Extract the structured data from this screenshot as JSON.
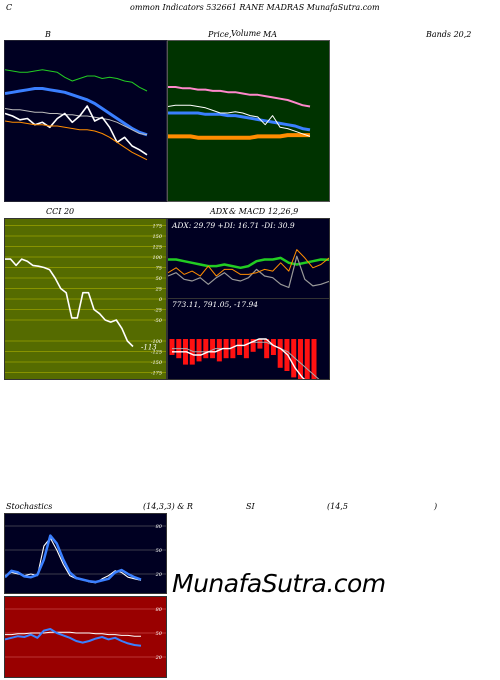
{
  "header": {
    "left_char": "C",
    "title": "ommon  Indicators 532661 RANE MADRAS MunafaSutra.com"
  },
  "panel_labels": {
    "bollinger_b": "B",
    "price_volume": "Price,",
    "volume_overlap": "Volume",
    "ma": "MA",
    "bands": "Bands 20,2",
    "cci": "CCI 20",
    "adx_title_a": "ADX",
    "adx_title_b": "& MACD 12,26,9",
    "stoch_a": "Stochastics",
    "stoch_b": "(14,3,3) & R",
    "stoch_c": "SI",
    "stoch_d": "(14,5",
    "stoch_e": ")"
  },
  "watermark": "MunafaSutra.com",
  "colors": {
    "dark_bg": "#000022",
    "green_bg": "#003300",
    "olive_bg": "#556b00",
    "red_bg": "#990000",
    "blue_line": "#3a7fff",
    "white_line": "#ffffff",
    "orange_line": "#ff8c00",
    "green_line": "#22cc22"
  },
  "chart_data": [
    {
      "type": "line",
      "name": "bollinger-b",
      "series": [
        {
          "values": [
            78,
            79,
            80,
            81,
            82,
            82,
            81,
            80,
            79,
            77,
            75,
            73,
            70,
            66,
            62,
            58,
            54,
            50,
            47,
            45
          ]
        },
        {
          "values": [
            66,
            65,
            65,
            64,
            63,
            63,
            62,
            62,
            61,
            61,
            60,
            60,
            59,
            58,
            57,
            55,
            52,
            49,
            46,
            45
          ]
        },
        {
          "values": [
            62,
            60,
            57,
            58,
            53,
            55,
            51,
            58,
            62,
            55,
            60,
            68,
            56,
            59,
            51,
            39,
            43,
            36,
            33,
            29
          ]
        },
        {
          "values": [
            56,
            55,
            55,
            54,
            53,
            53,
            52,
            52,
            51,
            50,
            49,
            49,
            48,
            46,
            43,
            39,
            35,
            31,
            28,
            25
          ]
        },
        {
          "values": [
            97,
            96,
            95,
            95,
            96,
            97,
            96,
            95,
            91,
            88,
            90,
            92,
            92,
            90,
            91,
            90,
            88,
            87,
            83,
            80
          ]
        }
      ]
    },
    {
      "type": "line",
      "name": "price-ma",
      "series": [
        {
          "values": [
            80,
            80,
            79,
            79,
            78,
            78,
            77,
            77,
            76,
            76,
            75,
            74,
            74,
            73,
            72,
            71,
            70,
            68,
            66,
            65
          ]
        },
        {
          "values": [
            60,
            60,
            60,
            60,
            60,
            59,
            59,
            59,
            58,
            58,
            57,
            56,
            55,
            54,
            53,
            52,
            51,
            50,
            48,
            47
          ]
        },
        {
          "values": [
            42,
            42,
            42,
            42,
            41,
            41,
            41,
            41,
            41,
            41,
            41,
            41,
            42,
            42,
            42,
            42,
            43,
            43,
            43,
            43
          ]
        },
        {
          "values": [
            65,
            66,
            66,
            66,
            65,
            64,
            62,
            60,
            60,
            61,
            60,
            58,
            57,
            51,
            58,
            49,
            48,
            46,
            44,
            42
          ]
        }
      ]
    },
    {
      "type": "line",
      "name": "cci",
      "y_ticks": [
        175,
        150,
        125,
        100,
        75,
        50,
        25,
        0,
        -25,
        -50,
        -100,
        -125,
        -150,
        -175
      ],
      "last_label": "-113",
      "values": [
        95,
        95,
        80,
        95,
        90,
        80,
        78,
        75,
        70,
        50,
        25,
        15,
        -45,
        -45,
        15,
        15,
        -25,
        -35,
        -50,
        -55,
        -50,
        -70,
        -100,
        -113
      ]
    },
    {
      "type": "line",
      "name": "adx",
      "title": "ADX: 29.79 +DI: 16.71 -DI: 30.9",
      "series": [
        {
          "values": [
            30,
            30,
            29,
            28,
            27,
            26,
            26,
            27,
            26,
            25,
            26,
            29,
            30,
            30,
            31,
            28,
            27,
            28,
            29,
            30,
            29.8
          ]
        },
        {
          "values": [
            20,
            22,
            18,
            17,
            19,
            15,
            19,
            22,
            18,
            17,
            19,
            24,
            20,
            19,
            15,
            13,
            32,
            18,
            14,
            15,
            16.7
          ]
        },
        {
          "values": [
            22,
            25,
            21,
            23,
            20,
            26,
            20,
            24,
            24,
            21,
            21,
            22,
            24,
            23,
            28,
            23,
            36,
            31,
            25,
            27,
            30.9
          ]
        }
      ]
    },
    {
      "type": "bar",
      "name": "macd",
      "title": "773.11,  791.05,  -17.94",
      "histogram": [
        -5,
        -6,
        -8,
        -8,
        -7,
        -6,
        -6,
        -7,
        -6,
        -6,
        -5,
        -6,
        -4,
        -3,
        -6,
        -5,
        -9,
        -10,
        -12,
        -14,
        -15,
        -17.94
      ],
      "series": [
        {
          "values": [
            -4,
            -4,
            -4,
            -5,
            -5,
            -4,
            -4,
            -3,
            -3,
            -2,
            -2,
            -1,
            0,
            0,
            -2,
            -3,
            -5,
            -9,
            -12,
            -14,
            -15,
            -16
          ]
        },
        {
          "values": [
            -3,
            -3,
            -3,
            -4,
            -4,
            -4,
            -3,
            -3,
            -3,
            -2,
            -2,
            -1,
            -1,
            -1,
            -2,
            -3,
            -4,
            -6,
            -8,
            -10,
            -12,
            -14
          ]
        }
      ]
    },
    {
      "type": "line",
      "name": "stochastics",
      "y_ticks": [
        80,
        50,
        20
      ],
      "series": [
        {
          "values": [
            18,
            22,
            20,
            18,
            20,
            18,
            55,
            65,
            50,
            32,
            18,
            14,
            13,
            10,
            9,
            14,
            18,
            24,
            22,
            16,
            14,
            12
          ]
        },
        {
          "values": [
            16,
            24,
            22,
            17,
            16,
            19,
            38,
            68,
            58,
            38,
            22,
            15,
            13,
            11,
            10,
            12,
            14,
            22,
            25,
            20,
            16,
            13
          ]
        }
      ]
    },
    {
      "type": "line",
      "name": "rsi",
      "y_ticks": [
        80,
        50,
        20
      ],
      "series": [
        {
          "values": [
            48,
            48,
            49,
            49,
            50,
            50,
            50,
            51,
            51,
            51,
            51,
            50,
            50,
            50,
            49,
            49,
            48,
            48,
            47,
            47,
            46,
            46
          ]
        },
        {
          "values": [
            42,
            44,
            46,
            45,
            48,
            44,
            53,
            55,
            50,
            47,
            44,
            40,
            38,
            40,
            43,
            45,
            42,
            44,
            40,
            37,
            35,
            34
          ]
        }
      ]
    }
  ]
}
